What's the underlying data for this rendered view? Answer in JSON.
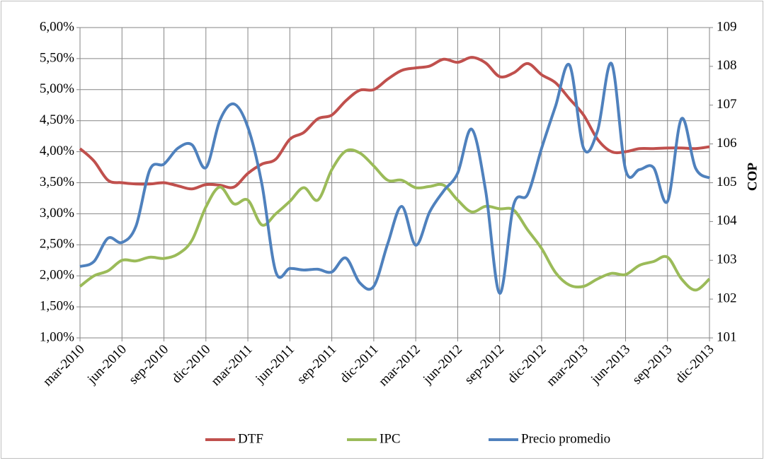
{
  "chart_data": {
    "type": "line",
    "categories": [
      "mar-2010",
      null,
      null,
      "jun-2010",
      null,
      null,
      "sep-2010",
      null,
      null,
      "dic-2010",
      null,
      null,
      "mar-2011",
      null,
      null,
      "jun-2011",
      null,
      null,
      "sep-2011",
      null,
      null,
      "dic-2011",
      null,
      null,
      "mar-2012",
      null,
      null,
      "jun-2012",
      null,
      null,
      "sep-2012",
      null,
      null,
      "dic-2012",
      null,
      null,
      "mar-2013",
      null,
      null,
      "jun-2013",
      null,
      null,
      "sep-2013",
      null,
      null,
      "dic-2013"
    ],
    "series": [
      {
        "name": "DTF",
        "color": "#c0504d",
        "values": [
          4.05,
          3.85,
          3.54,
          3.5,
          3.48,
          3.48,
          3.5,
          3.45,
          3.4,
          3.47,
          3.46,
          3.43,
          3.65,
          3.8,
          3.88,
          4.2,
          4.31,
          4.53,
          4.59,
          4.82,
          4.99,
          5.0,
          5.17,
          5.31,
          5.35,
          5.38,
          5.49,
          5.44,
          5.52,
          5.43,
          5.21,
          5.27,
          5.42,
          5.24,
          5.11,
          4.85,
          4.59,
          4.2,
          4.0,
          4.0,
          4.05,
          4.05,
          4.06,
          4.06,
          4.05,
          4.08
        ]
      },
      {
        "name": "IPC",
        "color": "#9bbb59",
        "values": [
          1.83,
          2.0,
          2.08,
          2.25,
          2.24,
          2.3,
          2.28,
          2.35,
          2.57,
          3.11,
          3.43,
          3.16,
          3.22,
          2.82,
          3.0,
          3.2,
          3.42,
          3.22,
          3.71,
          4.01,
          3.98,
          3.77,
          3.54,
          3.54,
          3.42,
          3.44,
          3.46,
          3.22,
          3.03,
          3.12,
          3.08,
          3.06,
          2.74,
          2.44,
          2.05,
          1.85,
          1.83,
          1.95,
          2.04,
          2.02,
          2.17,
          2.23,
          2.3,
          1.95,
          1.77,
          1.95
        ]
      },
      {
        "name": "Precio promedio",
        "color": "#4f81bd",
        "axis": "y2",
        "values": [
          102.84,
          102.97,
          103.57,
          103.46,
          103.88,
          105.34,
          105.48,
          105.89,
          105.98,
          105.39,
          106.61,
          107.03,
          106.43,
          104.97,
          102.7,
          102.79,
          102.75,
          102.77,
          102.7,
          103.06,
          102.42,
          102.33,
          103.43,
          104.39,
          103.39,
          104.25,
          104.79,
          105.25,
          106.38,
          104.79,
          102.15,
          104.43,
          104.7,
          105.89,
          106.98,
          108.03,
          105.89,
          106.34,
          108.07,
          105.34,
          105.34,
          105.39,
          104.52,
          106.65,
          105.38,
          105.12
        ]
      }
    ],
    "ylim": [
      1,
      6
    ],
    "yticks": [
      {
        "value": 1,
        "label": "1,00%"
      },
      {
        "value": 1.5,
        "label": "1,50%"
      },
      {
        "value": 2,
        "label": "2,00%"
      },
      {
        "value": 2.5,
        "label": "2,50%"
      },
      {
        "value": 3,
        "label": "3,00%"
      },
      {
        "value": 3.5,
        "label": "3,50%"
      },
      {
        "value": 4,
        "label": "4,00%"
      },
      {
        "value": 4.5,
        "label": "4,50%"
      },
      {
        "value": 5,
        "label": "5,00%"
      },
      {
        "value": 5.5,
        "label": "5,50%"
      },
      {
        "value": 6,
        "label": "6,00%"
      }
    ],
    "y2lim": [
      101,
      109
    ],
    "y2ticks": [
      101,
      102,
      103,
      104,
      105,
      106,
      107,
      108,
      109
    ],
    "y2label": "COP",
    "grid": true,
    "legend": "bottom"
  }
}
